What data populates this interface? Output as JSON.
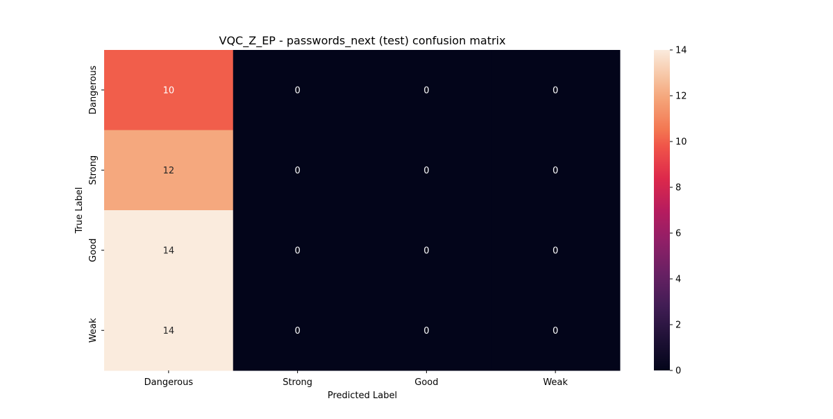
{
  "chart_data": {
    "type": "heatmap",
    "title": "VQC_Z_EP - passwords_next (test) confusion matrix",
    "xlabel": "Predicted Label",
    "ylabel": "True Label",
    "x_categories": [
      "Dangerous",
      "Strong",
      "Good",
      "Weak"
    ],
    "y_categories": [
      "Dangerous",
      "Strong",
      "Good",
      "Weak"
    ],
    "values": [
      [
        10,
        0,
        0,
        0
      ],
      [
        12,
        0,
        0,
        0
      ],
      [
        14,
        0,
        0,
        0
      ],
      [
        14,
        0,
        0,
        0
      ]
    ],
    "colorbar": {
      "min": 0,
      "max": 14,
      "ticks": [
        "0",
        "2",
        "4",
        "6",
        "8",
        "10",
        "12",
        "14"
      ],
      "colormap": "rocket"
    },
    "annotations": true
  }
}
